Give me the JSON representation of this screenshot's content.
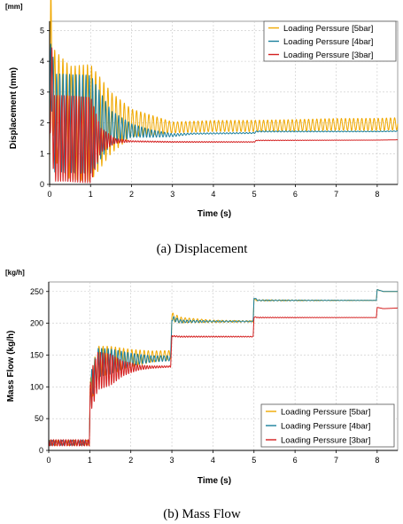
{
  "chart_data": [
    {
      "type": "line",
      "caption": "(a)  Displacement",
      "unit_label": "[mm]",
      "xlabel": "Time (s)",
      "ylabel": "Displacement (mm)",
      "xlim": [
        0,
        8.5
      ],
      "ylim": [
        0,
        5.3
      ],
      "xticks": [
        0,
        1,
        2,
        3,
        4,
        5,
        6,
        7,
        8
      ],
      "yticks": [
        0,
        1,
        2,
        3,
        4,
        5
      ],
      "grid": true,
      "legend_position": "top-right",
      "series": [
        {
          "name": "Loading Perssure [5bar]",
          "color": "#f0a800",
          "points": [
            [
              0,
              0
            ],
            [
              0.03,
              5.0
            ],
            [
              0.1,
              2.6
            ],
            [
              0.5,
              2.0
            ],
            [
              1.0,
              2.0
            ],
            [
              2.0,
              2.0
            ],
            [
              3.0,
              1.85
            ],
            [
              4.0,
              1.9
            ],
            [
              5.0,
              1.9
            ],
            [
              6.0,
              1.92
            ],
            [
              7.0,
              1.95
            ],
            [
              8.0,
              1.95
            ],
            [
              8.5,
              1.97
            ]
          ],
          "oscillation": [
            [
              0.1,
              1.8
            ],
            [
              1.0,
              1.9
            ],
            [
              1.5,
              1.0
            ],
            [
              2.0,
              0.45
            ],
            [
              2.5,
              0.32
            ],
            [
              3.0,
              0.18
            ],
            [
              4.0,
              0.18
            ],
            [
              8.5,
              0.2
            ]
          ],
          "period": 0.1
        },
        {
          "name": "Loading Perssure [4bar]",
          "color": "#1a7f9c",
          "points": [
            [
              0,
              0
            ],
            [
              0.03,
              4.8
            ],
            [
              0.1,
              2.0
            ],
            [
              1.0,
              1.95
            ],
            [
              1.5,
              1.85
            ],
            [
              2.0,
              1.75
            ],
            [
              2.5,
              1.65
            ],
            [
              3.0,
              1.6
            ],
            [
              3.5,
              1.65
            ],
            [
              5.0,
              1.67
            ],
            [
              5.05,
              1.72
            ],
            [
              8.0,
              1.72
            ],
            [
              8.5,
              1.73
            ]
          ],
          "oscillation": [
            [
              0.1,
              1.6
            ],
            [
              1.0,
              1.6
            ],
            [
              1.5,
              0.55
            ],
            [
              2.0,
              0.22
            ],
            [
              2.5,
              0.12
            ],
            [
              3.0,
              0.05
            ],
            [
              3.5,
              0.02
            ],
            [
              8.5,
              0.01
            ]
          ],
          "period": 0.08
        },
        {
          "name": "Loading Perssure [3bar]",
          "color": "#d42020",
          "points": [
            [
              0,
              0
            ],
            [
              0.03,
              4.0
            ],
            [
              0.1,
              1.5
            ],
            [
              1.0,
              1.45
            ],
            [
              1.5,
              1.42
            ],
            [
              2.0,
              1.4
            ],
            [
              3.0,
              1.38
            ],
            [
              5.0,
              1.38
            ],
            [
              5.05,
              1.43
            ],
            [
              8.0,
              1.44
            ],
            [
              8.5,
              1.45
            ]
          ],
          "oscillation": [
            [
              0.1,
              1.4
            ],
            [
              1.0,
              1.4
            ],
            [
              1.25,
              0.4
            ],
            [
              1.6,
              0.08
            ],
            [
              2.0,
              0.02
            ],
            [
              8.5,
              0.0
            ]
          ],
          "period": 0.06
        }
      ]
    },
    {
      "type": "line",
      "caption": "(b)  Mass Flow",
      "unit_label": "[kg/h]",
      "xlabel": "Time (s)",
      "ylabel": "Mass Flow (kg/h)",
      "xlim": [
        0,
        8.5
      ],
      "ylim": [
        0,
        265
      ],
      "xticks": [
        0,
        1,
        2,
        3,
        4,
        5,
        6,
        7,
        8
      ],
      "yticks": [
        0,
        50,
        100,
        150,
        200,
        250
      ],
      "grid": true,
      "legend_position": "bottom-right",
      "series": [
        {
          "name": "Loading Perssure [5bar]",
          "color": "#f0a800",
          "points": [
            [
              0,
              12
            ],
            [
              0.99,
              12
            ],
            [
              1.01,
              95
            ],
            [
              1.2,
              140
            ],
            [
              2.0,
              145
            ],
            [
              2.97,
              150
            ],
            [
              3.0,
              210
            ],
            [
              3.2,
              205
            ],
            [
              4.0,
              203
            ],
            [
              4.98,
              203
            ],
            [
              5.0,
              237
            ],
            [
              5.1,
              236
            ],
            [
              7.98,
              236
            ],
            [
              8.0,
              253
            ],
            [
              8.15,
              250
            ],
            [
              8.5,
              250
            ]
          ],
          "oscillation": [
            [
              0,
              4
            ],
            [
              1.0,
              4
            ],
            [
              1.05,
              25
            ],
            [
              1.5,
              22
            ],
            [
              2.0,
              14
            ],
            [
              2.5,
              9
            ],
            [
              3.0,
              7
            ],
            [
              3.3,
              4
            ],
            [
              4.0,
              2
            ],
            [
              5.0,
              1
            ],
            [
              8.5,
              0
            ]
          ],
          "period": 0.1
        },
        {
          "name": "Loading Perssure [4bar]",
          "color": "#1a7f9c",
          "points": [
            [
              0,
              12
            ],
            [
              0.99,
              12
            ],
            [
              1.01,
              95
            ],
            [
              1.2,
              138
            ],
            [
              2.0,
              143
            ],
            [
              2.97,
              145
            ],
            [
              3.0,
              208
            ],
            [
              3.2,
              203
            ],
            [
              4.0,
              203
            ],
            [
              4.98,
              203
            ],
            [
              5.0,
              240
            ],
            [
              5.1,
              236
            ],
            [
              7.98,
              236
            ],
            [
              8.0,
              253
            ],
            [
              8.15,
              250
            ],
            [
              8.5,
              250
            ]
          ],
          "oscillation": [
            [
              0,
              4
            ],
            [
              1.0,
              4
            ],
            [
              1.05,
              24
            ],
            [
              1.5,
              20
            ],
            [
              2.0,
              10
            ],
            [
              2.5,
              5
            ],
            [
              3.0,
              4
            ],
            [
              3.3,
              2
            ],
            [
              4.0,
              1
            ],
            [
              8.5,
              0
            ]
          ],
          "period": 0.08
        },
        {
          "name": "Loading Perssure [3bar]",
          "color": "#d42020",
          "points": [
            [
              0,
              12
            ],
            [
              0.99,
              12
            ],
            [
              1.01,
              90
            ],
            [
              1.2,
              125
            ],
            [
              2.0,
              130
            ],
            [
              2.97,
              132
            ],
            [
              3.0,
              180
            ],
            [
              3.2,
              179
            ],
            [
              4.98,
              179
            ],
            [
              5.0,
              210
            ],
            [
              5.1,
              209
            ],
            [
              7.98,
              209
            ],
            [
              8.0,
              225
            ],
            [
              8.15,
              223
            ],
            [
              8.5,
              224
            ]
          ],
          "oscillation": [
            [
              0,
              5
            ],
            [
              1.0,
              5
            ],
            [
              1.05,
              32
            ],
            [
              1.5,
              25
            ],
            [
              1.8,
              12
            ],
            [
              2.2,
              4
            ],
            [
              2.5,
              2
            ],
            [
              3.0,
              1
            ],
            [
              8.5,
              0
            ]
          ],
          "period": 0.06
        }
      ]
    }
  ]
}
